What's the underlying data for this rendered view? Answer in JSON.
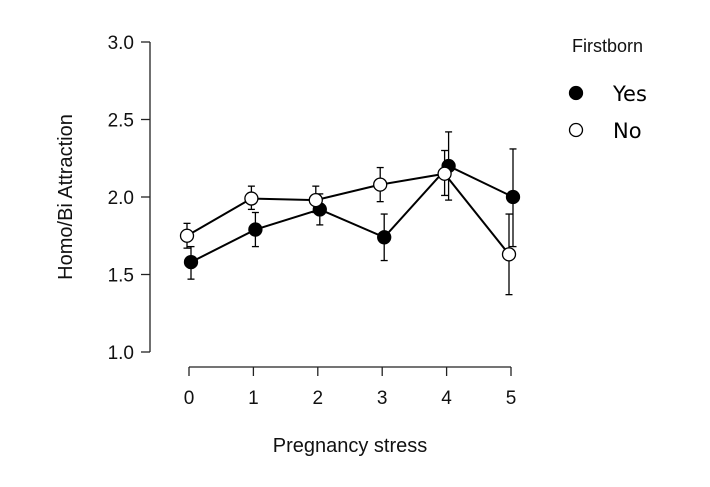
{
  "chart_data": {
    "type": "line",
    "title": "",
    "xlabel": "Pregnancy stress",
    "ylabel": "Homo/Bi Attraction",
    "x": [
      0,
      1,
      2,
      3,
      4,
      5
    ],
    "x_ticks": [
      "0",
      "1",
      "2",
      "3",
      "4",
      "5"
    ],
    "y_ticks": [
      "1.0",
      "1.5",
      "2.0",
      "2.5",
      "3.0"
    ],
    "xlim": [
      0,
      5
    ],
    "ylim": [
      1.0,
      3.0
    ],
    "grid": false,
    "legend": {
      "title": "Firstborn",
      "position": "top-right"
    },
    "series": [
      {
        "name": "Yes",
        "marker": "filled-circle",
        "color": "#000000",
        "values": [
          1.58,
          1.79,
          1.92,
          1.74,
          2.2,
          2.0
        ],
        "error_low": [
          1.47,
          1.68,
          1.82,
          1.59,
          1.98,
          1.68
        ],
        "error_high": [
          1.68,
          1.9,
          2.02,
          1.89,
          2.42,
          2.31
        ]
      },
      {
        "name": "No",
        "marker": "open-circle",
        "color": "#000000",
        "values": [
          1.75,
          1.99,
          1.98,
          2.08,
          2.15,
          1.63
        ],
        "error_low": [
          1.67,
          1.92,
          1.9,
          1.97,
          2.01,
          1.37
        ],
        "error_high": [
          1.83,
          2.07,
          2.07,
          2.19,
          2.3,
          1.89
        ]
      }
    ]
  }
}
